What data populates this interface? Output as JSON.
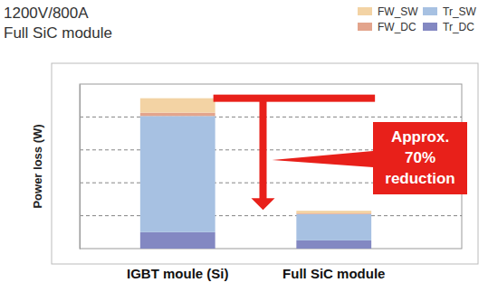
{
  "chart_data": {
    "type": "bar",
    "title": "1200V/800A",
    "subtitle": "Full SiC module",
    "y_label": "Power loss (W)",
    "annotation": "Approx. 70% reduction",
    "categories": [
      "IGBT moule (Si)",
      "Full SiC module"
    ],
    "series": [
      {
        "name": "Tr_DC",
        "color": "#8388c2",
        "values": [
          0.5,
          0.25
        ]
      },
      {
        "name": "Tr_SW",
        "color": "#a7c1e2",
        "values": [
          3.53,
          0.8
        ]
      },
      {
        "name": "FW_DC",
        "color": "#e3a48c",
        "values": [
          0.1,
          0.02
        ]
      },
      {
        "name": "FW_SW",
        "color": "#f3d3a4",
        "values": [
          0.44,
          0.08
        ]
      }
    ],
    "stacked": true,
    "ylim": [
      0,
      5
    ],
    "yticks": [
      1,
      2,
      3,
      4
    ],
    "grid": true,
    "tick_labels": "x",
    "legend": "top-right"
  }
}
